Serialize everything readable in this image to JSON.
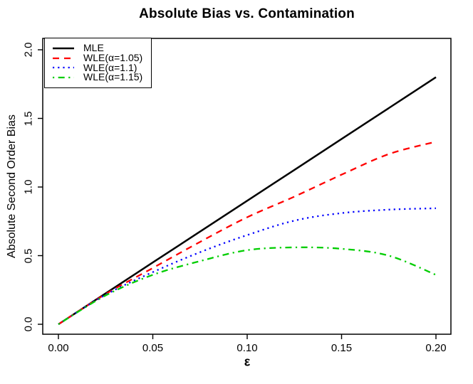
{
  "title": "Absolute Bias vs. Contamination",
  "chart_data": {
    "type": "line",
    "title": "Absolute Bias vs. Contamination",
    "xlabel": "ε",
    "ylabel": "Absolute Second Order Bias",
    "xlim": [
      0,
      0.2
    ],
    "ylim": [
      0,
      2.0
    ],
    "grid": false,
    "legend_position": "topleft",
    "x_ticks": [
      {
        "value": 0.0,
        "label": "0.00"
      },
      {
        "value": 0.05,
        "label": "0.05"
      },
      {
        "value": 0.1,
        "label": "0.10"
      },
      {
        "value": 0.15,
        "label": "0.15"
      },
      {
        "value": 0.2,
        "label": "0.20"
      }
    ],
    "y_ticks": [
      {
        "value": 0.0,
        "label": "0.0"
      },
      {
        "value": 0.5,
        "label": "0.5"
      },
      {
        "value": 1.0,
        "label": "1.0"
      },
      {
        "value": 1.5,
        "label": "1.5"
      },
      {
        "value": 2.0,
        "label": "2.0"
      }
    ],
    "x": [
      0,
      0.025,
      0.05,
      0.075,
      0.1,
      0.125,
      0.15,
      0.175,
      0.2
    ],
    "series": [
      {
        "name": "MLE",
        "color": "#000000",
        "style": "solid",
        "values": [
          0,
          0.225,
          0.45,
          0.675,
          0.9,
          1.125,
          1.35,
          1.575,
          1.8
        ]
      },
      {
        "name": "WLE(α=1.05)",
        "color": "#FF0000",
        "style": "dashed",
        "values": [
          0,
          0.22,
          0.41,
          0.6,
          0.78,
          0.93,
          1.09,
          1.24,
          1.33
        ]
      },
      {
        "name": "WLE(α=1.1)",
        "color": "#0000FF",
        "style": "dotted",
        "values": [
          0,
          0.215,
          0.38,
          0.525,
          0.65,
          0.755,
          0.81,
          0.835,
          0.845
        ]
      },
      {
        "name": "WLE(α=1.15)",
        "color": "#00CD00",
        "style": "dashdot",
        "values": [
          0,
          0.21,
          0.36,
          0.46,
          0.54,
          0.56,
          0.55,
          0.5,
          0.36
        ]
      }
    ],
    "axis_color": "#000000"
  }
}
